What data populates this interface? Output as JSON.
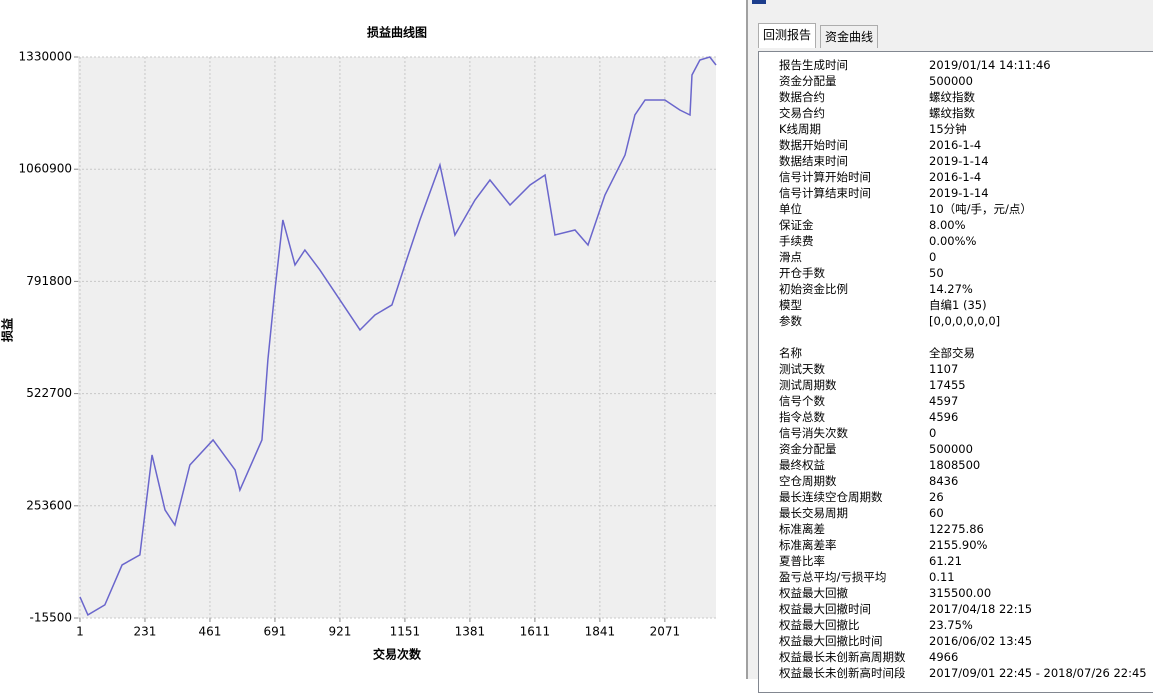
{
  "chart_data": {
    "type": "line",
    "title": "损益曲线图",
    "x_label": "交易次数",
    "y_label": "损益",
    "xlim": [
      -6,
      2252
    ],
    "xticks": [
      1,
      231,
      461,
      691,
      921,
      1151,
      1381,
      1611,
      1841,
      2071
    ],
    "ylim": [
      -15500,
      1330000
    ],
    "yticks": [
      -15500,
      253600,
      522700,
      791800,
      1060900,
      1330000
    ],
    "grid": true,
    "series": [
      {
        "name": "损益",
        "color": "#6a66cc",
        "x": [
          1,
          29,
          89,
          150,
          213,
          256,
          302,
          337,
          390,
          472,
          550,
          567,
          645,
          666,
          691,
          719,
          762,
          797,
          850,
          921,
          992,
          1045,
          1105,
          1151,
          1204,
          1275,
          1328,
          1399,
          1452,
          1523,
          1594,
          1647,
          1682,
          1753,
          1799,
          1859,
          1930,
          1965,
          2001,
          2071,
          2124,
          2160,
          2167,
          2195,
          2230,
          2252
        ],
        "values": [
          35000,
          -8100,
          15900,
          111800,
          135800,
          375600,
          243600,
          207600,
          351600,
          411500,
          339500,
          291500,
          411500,
          603400,
          771300,
          939100,
          831200,
          867100,
          819300,
          747300,
          675300,
          711300,
          735300,
          831200,
          939100,
          1071000,
          903100,
          987000,
          1035000,
          975100,
          1023000,
          1047000,
          903100,
          915100,
          879100,
          999000,
          1094900,
          1190900,
          1226900,
          1226900,
          1202900,
          1190900,
          1286800,
          1322800,
          1330000,
          1310800
        ]
      }
    ]
  },
  "tabs": [
    "回测报告",
    "资金曲线"
  ],
  "report": {
    "section1": [
      [
        "报告生成时间",
        "2019/01/14 14:11:46"
      ],
      [
        "资金分配量",
        "500000"
      ],
      [
        "数据合约",
        "螺纹指数"
      ],
      [
        "交易合约",
        "螺纹指数"
      ],
      [
        "K线周期",
        "15分钟"
      ],
      [
        "数据开始时间",
        "2016-1-4"
      ],
      [
        "数据结束时间",
        "2019-1-14"
      ],
      [
        "信号计算开始时间",
        "2016-1-4"
      ],
      [
        "信号计算结束时间",
        "2019-1-14"
      ],
      [
        "单位",
        "10（吨/手，元/点）"
      ],
      [
        "保证金",
        "8.00%"
      ],
      [
        "手续费",
        "0.00%%"
      ],
      [
        "滑点",
        "0"
      ],
      [
        "开仓手数",
        "50"
      ],
      [
        "初始资金比例",
        "14.27%"
      ],
      [
        "模型",
        "自编1 (35)"
      ],
      [
        "参数",
        "[0,0,0,0,0,0]"
      ]
    ],
    "section2": [
      [
        "名称",
        "全部交易"
      ],
      [
        "测试天数",
        "1107"
      ],
      [
        "测试周期数",
        "17455"
      ],
      [
        "信号个数",
        "4597"
      ],
      [
        "指令总数",
        "4596"
      ],
      [
        "信号消失次数",
        "0"
      ],
      [
        "资金分配量",
        "500000"
      ],
      [
        "最终权益",
        "1808500"
      ],
      [
        "空仓周期数",
        "8436"
      ],
      [
        "最长连续空仓周期数",
        "26"
      ],
      [
        "最长交易周期",
        "60"
      ],
      [
        "标准离差",
        "12275.86"
      ],
      [
        "标准离差率",
        "2155.90%"
      ],
      [
        "夏普比率",
        "61.21"
      ],
      [
        "盈亏总平均/亏损平均",
        "0.11"
      ],
      [
        "权益最大回撤",
        "315500.00"
      ],
      [
        "权益最大回撤时间",
        "2017/04/18 22:15"
      ],
      [
        "权益最大回撤比",
        "23.75%"
      ],
      [
        "权益最大回撤比时间",
        "2016/06/02 13:45"
      ],
      [
        "权益最长未创新高周期数",
        "4966"
      ],
      [
        "权益最长未创新高时间段",
        "2017/09/01 22:45 - 2018/07/26 22:45"
      ]
    ]
  }
}
